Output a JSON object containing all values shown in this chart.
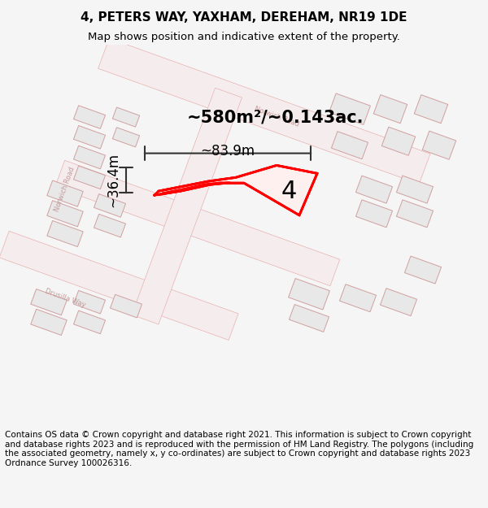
{
  "title_line1": "4, PETERS WAY, YAXHAM, DEREHAM, NR19 1DE",
  "title_line2": "Map shows position and indicative extent of the property.",
  "footer_text": "Contains OS data © Crown copyright and database right 2021. This information is subject to Crown copyright and database rights 2023 and is reproduced with the permission of HM Land Registry. The polygons (including the associated geometry, namely x, y co-ordinates) are subject to Crown copyright and database rights 2023 Ordnance Survey 100026316.",
  "area_label": "~580m²/~0.143ac.",
  "number_label": "4",
  "width_label": "~83.9m",
  "height_label": "~36.4m",
  "bg_color": "#f5f5f5",
  "map_bg": "#ffffff",
  "outline_color": "#e8a0a0",
  "road_color": "#e8c0c0",
  "building_color": "#e0e0e0",
  "highlight_color": "#ff0000",
  "dim_color": "#333333",
  "title_fontsize": 11,
  "subtitle_fontsize": 9.5,
  "footer_fontsize": 7.5,
  "label_fontsize": 15,
  "number_fontsize": 22,
  "dim_label_fontsize": 12,
  "map_xlim": [
    0,
    1
  ],
  "map_ylim": [
    0,
    1
  ]
}
